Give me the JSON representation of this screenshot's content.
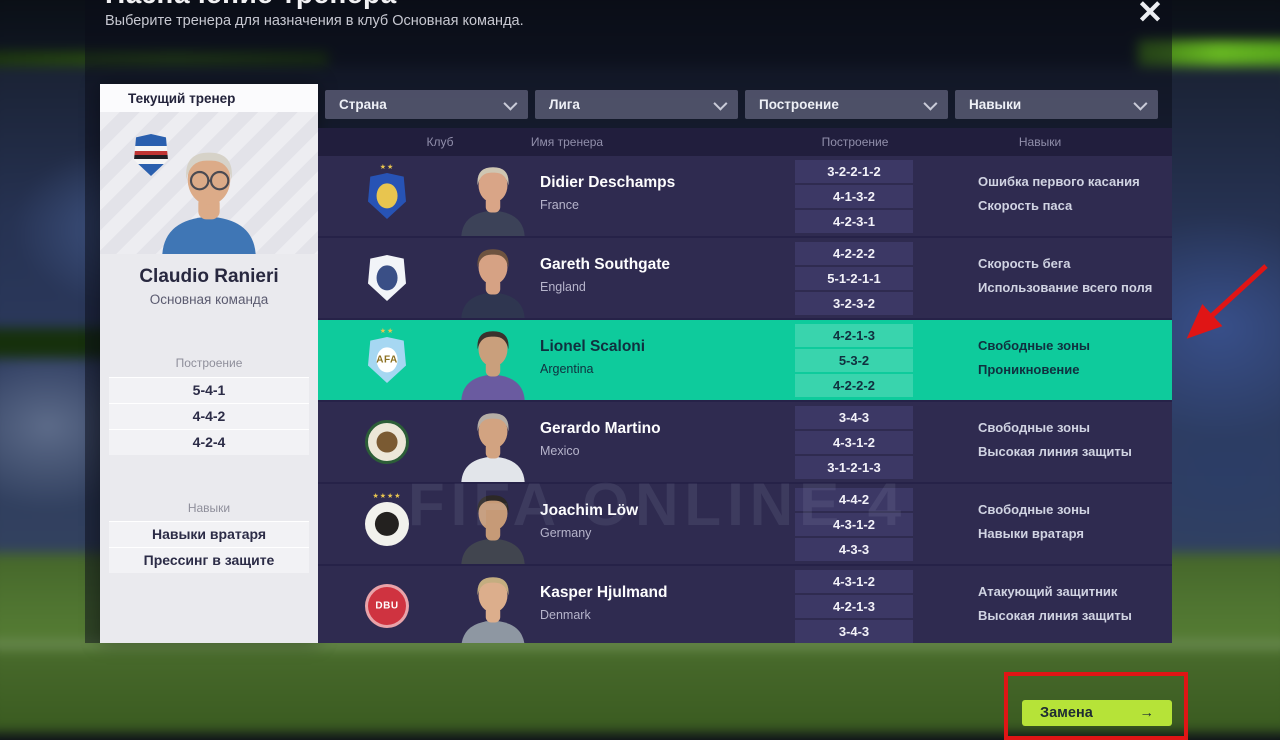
{
  "header": {
    "title": "Назначение тренера",
    "subtitle": "Выберите тренера для назначения в клуб Основная команда.",
    "close_icon": "✕"
  },
  "current_coach": {
    "panel_title": "Текущий тренер",
    "name": "Claudio Ranieri",
    "team": "Основная команда",
    "formations_label": "Построение",
    "formations": [
      "5-4-1",
      "4-4-2",
      "4-2-4"
    ],
    "skills_label": "Навыки",
    "skills": [
      "Навыки вратаря",
      "Прессинг в защите"
    ],
    "portrait": {
      "hair": "#d6d2c8",
      "skin": "#dcab88",
      "shirt": "#3f76b5"
    }
  },
  "filters": [
    {
      "label": "Страна",
      "name": "filter-country"
    },
    {
      "label": "Лига",
      "name": "filter-league"
    },
    {
      "label": "Построение",
      "name": "filter-formation"
    },
    {
      "label": "Навыки",
      "name": "filter-skills"
    }
  ],
  "table": {
    "columns": [
      "Клуб",
      "Имя тренера",
      "Построение",
      "Навыки"
    ],
    "rows": [
      {
        "coach": "Didier Deschamps",
        "country": "France",
        "selected": false,
        "formations": [
          "3-2-2-1-2",
          "4-1-3-2",
          "4-2-3-1"
        ],
        "skills": [
          "Ошибка первого касания",
          "Скорость паса"
        ],
        "badge": {
          "icon": "france-badge",
          "shape": "shield",
          "bg": "#2753b5",
          "accent": "#e8c54f",
          "stars": 2
        },
        "portrait": {
          "hair": "#cfc6b2",
          "skin": "#d9a587",
          "shirt": "#3c4258"
        }
      },
      {
        "coach": "Gareth Southgate",
        "country": "England",
        "selected": false,
        "formations": [
          "4-2-2-2",
          "5-1-2-1-1",
          "3-2-3-2"
        ],
        "skills": [
          "Скорость бега",
          "Использование всего поля"
        ],
        "badge": {
          "icon": "england-badge",
          "shape": "shield",
          "bg": "#f2f4f8",
          "accent": "#3a4f86"
        },
        "portrait": {
          "hair": "#6d5340",
          "skin": "#d6a284",
          "shirt": "#2f3650"
        }
      },
      {
        "coach": "Lionel Scaloni",
        "country": "Argentina",
        "selected": true,
        "formations": [
          "4-2-1-3",
          "5-3-2",
          "4-2-2-2"
        ],
        "skills": [
          "Свободные зоны",
          "Проникновение"
        ],
        "badge": {
          "icon": "argentina-badge",
          "shape": "shield",
          "bg": "#a6d7f2",
          "accent": "#ffffff",
          "text": "AFA",
          "text_color": "#8a6f1f",
          "stars": 2
        },
        "portrait": {
          "hair": "#3a322d",
          "skin": "#c99f7c",
          "shirt": "#6a5ba0"
        }
      },
      {
        "coach": "Gerardo Martino",
        "country": "Mexico",
        "selected": false,
        "formations": [
          "3-4-3",
          "4-3-1-2",
          "3-1-2-1-3"
        ],
        "skills": [
          "Свободные зоны",
          "Высокая линия защиты"
        ],
        "badge": {
          "icon": "mexico-badge",
          "shape": "circle",
          "bg": "#ece7d8",
          "accent": "#7a5a32",
          "ring": "#2c5e38"
        },
        "portrait": {
          "hair": "#b5aea6",
          "skin": "#d2a381",
          "shirt": "#e2e5ea"
        }
      },
      {
        "coach": "Joachim Löw",
        "country": "Germany",
        "selected": false,
        "formations": [
          "4-4-2",
          "4-3-1-2",
          "4-3-3"
        ],
        "skills": [
          "Свободные зоны",
          "Навыки вратаря"
        ],
        "badge": {
          "icon": "germany-badge",
          "shape": "circle",
          "bg": "#f1f1ec",
          "accent": "#23211f",
          "stars": 4
        },
        "portrait": {
          "hair": "#2c2826",
          "skin": "#c69a77",
          "shirt": "#41454f"
        }
      },
      {
        "coach": "Kasper Hjulmand",
        "country": "Denmark",
        "selected": false,
        "formations": [
          "4-3-1-2",
          "4-2-1-3",
          "3-4-3"
        ],
        "skills": [
          "Атакующий защитник",
          "Высокая линия защиты"
        ],
        "badge": {
          "icon": "denmark-badge",
          "shape": "circle",
          "bg": "#cf3340",
          "text": "DBU",
          "text_color": "#ffffff",
          "ring": "rgba(255,255,255,0.55)"
        },
        "portrait": {
          "hair": "#c4ad80",
          "skin": "#dcae8c",
          "shirt": "#8e97a2"
        }
      }
    ]
  },
  "watermark": "FIFA ONLINE 4",
  "footer": {
    "swap_button": "Замена",
    "swap_arrow": "→"
  },
  "colors": {
    "selected_row": "#0ecb9c",
    "swap_button_bg": "#b6e338",
    "annotation_red": "#e01515"
  }
}
